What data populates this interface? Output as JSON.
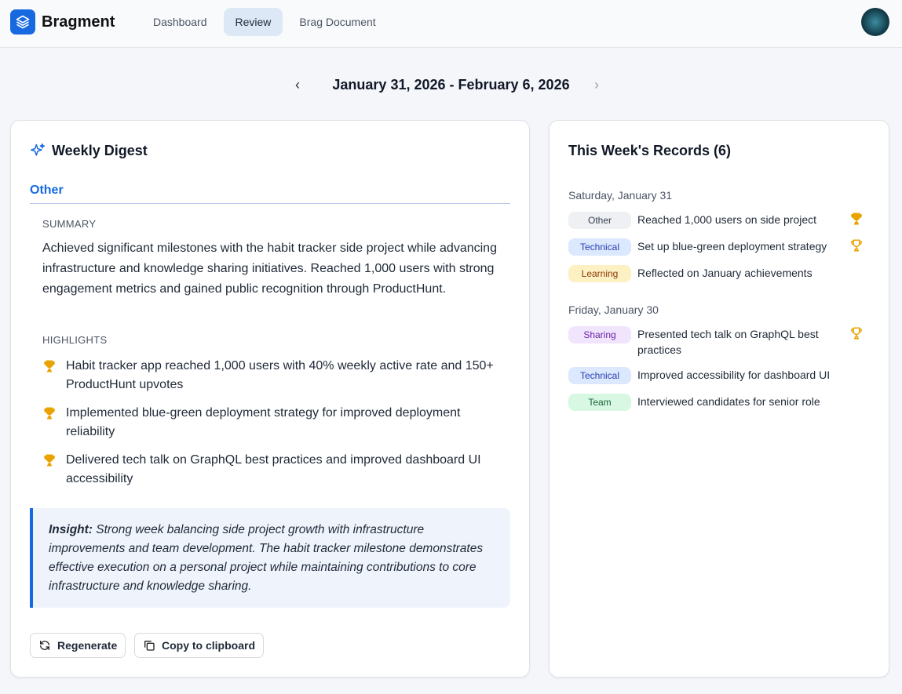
{
  "app": {
    "name": "Bragment"
  },
  "nav": [
    {
      "label": "Dashboard"
    },
    {
      "label": "Review",
      "active": true
    },
    {
      "label": "Brag Document"
    }
  ],
  "date_range": "January 31, 2026 - February 6, 2026",
  "digest": {
    "title": "Weekly Digest",
    "category": "Other",
    "summary_label": "SUMMARY",
    "summary": "Achieved significant milestones with the habit tracker side project while advancing infrastructure and knowledge sharing initiatives. Reached 1,000 users with strong engagement metrics and gained public recognition through ProductHunt.",
    "highlights_label": "HIGHLIGHTS",
    "highlights": [
      "Habit tracker app reached 1,000 users with 40% weekly active rate and 150+ ProductHunt upvotes",
      "Implemented blue-green deployment strategy for improved deployment reliability",
      "Delivered tech talk on GraphQL best practices and improved dashboard UI accessibility"
    ],
    "insight_label": "Insight:",
    "insight": "Strong week balancing side project growth with infrastructure improvements and team development. The habit tracker milestone demonstrates effective execution on a personal project while maintaining contributions to core infrastructure and knowledge sharing.",
    "regenerate": "Regenerate",
    "copy": "Copy to clipboard"
  },
  "records": {
    "title": "This Week's Records (6)",
    "days": [
      {
        "label": "Saturday, January 31",
        "items": [
          {
            "tag": "Other",
            "text": "Reached 1,000 users on side project",
            "trophy": "filled"
          },
          {
            "tag": "Technical",
            "text": "Set up blue-green deployment strategy",
            "trophy": "outline"
          },
          {
            "tag": "Learning",
            "text": "Reflected on January achievements",
            "trophy": "none"
          }
        ]
      },
      {
        "label": "Friday, January 30",
        "items": [
          {
            "tag": "Sharing",
            "text": "Presented tech talk on GraphQL best practices",
            "trophy": "outline"
          },
          {
            "tag": "Technical",
            "text": "Improved accessibility for dashboard UI",
            "trophy": "none"
          },
          {
            "tag": "Team",
            "text": "Interviewed candidates for senior role",
            "trophy": "none"
          }
        ]
      }
    ]
  },
  "colors": {
    "accent": "#1769e0",
    "trophy": "#e8a300",
    "Other": [
      "#eef0f3",
      "#374151"
    ],
    "Technical": [
      "#dbe8fd",
      "#2a3fb0"
    ],
    "Learning": [
      "#fdf0c2",
      "#8a3b0c"
    ],
    "Sharing": [
      "#f1e4fd",
      "#6b21a8"
    ],
    "Team": [
      "#d9f8e4",
      "#166534"
    ]
  }
}
